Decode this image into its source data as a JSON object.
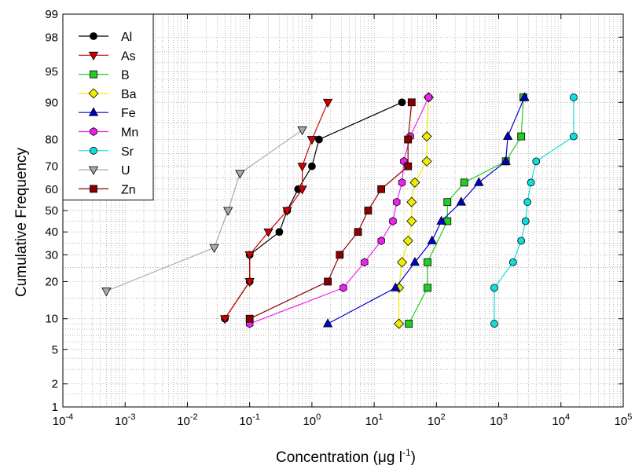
{
  "chart_data": {
    "type": "line",
    "xlabel": "Concentration (μg l",
    "xlabel_sup": "-1",
    "xlabel_end": ")",
    "ylabel": "Cumulative Frequency",
    "x_scale": "log",
    "y_scale": "probability",
    "xlim": [
      0.0001,
      100000
    ],
    "ylim": [
      1,
      99
    ],
    "x_ticks": [
      {
        "value": 0.0001,
        "base": "10",
        "exp": "-4"
      },
      {
        "value": 0.001,
        "base": "10",
        "exp": "-3"
      },
      {
        "value": 0.01,
        "base": "10",
        "exp": "-2"
      },
      {
        "value": 0.1,
        "base": "10",
        "exp": "-1"
      },
      {
        "value": 1,
        "base": "10",
        "exp": "0"
      },
      {
        "value": 10,
        "base": "10",
        "exp": "1"
      },
      {
        "value": 100,
        "base": "10",
        "exp": "2"
      },
      {
        "value": 1000,
        "base": "10",
        "exp": "3"
      },
      {
        "value": 10000,
        "base": "10",
        "exp": "4"
      },
      {
        "value": 100000,
        "base": "10",
        "exp": "5"
      }
    ],
    "y_ticks": [
      1,
      2,
      5,
      10,
      20,
      30,
      40,
      50,
      60,
      70,
      80,
      90,
      95,
      98,
      99
    ],
    "y_tick_labels": [
      "1",
      "2",
      "5",
      "10",
      "20",
      "30",
      "40",
      "50",
      "60",
      "70",
      "80",
      "90",
      "95",
      "98",
      "99"
    ],
    "grid": true,
    "legend_position": "top-left",
    "series": [
      {
        "name": "Al",
        "color": "#000000",
        "marker": "circle",
        "x": [
          0.04,
          0.1,
          0.1,
          0.3,
          0.4,
          0.6,
          1.0,
          1.3,
          28
        ],
        "y": [
          10,
          20,
          30,
          40,
          50,
          60,
          70,
          80,
          90
        ]
      },
      {
        "name": "As",
        "color": "#cc0000",
        "marker": "triangle-down",
        "x": [
          0.04,
          0.1,
          0.1,
          0.2,
          0.4,
          0.7,
          0.7,
          1.0,
          1.8
        ],
        "y": [
          10,
          20,
          30,
          40,
          50,
          60,
          70,
          80,
          90
        ]
      },
      {
        "name": "B",
        "color": "#22cc22",
        "marker": "square",
        "x": [
          36,
          72,
          72,
          150,
          150,
          280,
          1300,
          2300,
          2500
        ],
        "y": [
          9,
          18,
          27,
          45,
          54,
          63,
          72,
          81,
          91
        ]
      },
      {
        "name": "Ba",
        "color": "#eeee00",
        "marker": "diamond",
        "x": [
          25,
          25,
          28,
          35,
          40,
          40,
          45,
          70,
          70,
          75
        ],
        "y": [
          9,
          18,
          27,
          36,
          45,
          54,
          63,
          72,
          81,
          91
        ]
      },
      {
        "name": "Fe",
        "color": "#0000cc",
        "marker": "triangle-up",
        "x": [
          1.8,
          22,
          45,
          85,
          120,
          250,
          480,
          1300,
          1400,
          2600
        ],
        "y": [
          9,
          18,
          27,
          36,
          45,
          54,
          63,
          72,
          81,
          91
        ]
      },
      {
        "name": "Mn",
        "color": "#ee22ee",
        "marker": "hexagon",
        "x": [
          0.1,
          3.2,
          7,
          13,
          20,
          23,
          28,
          30,
          38,
          75
        ],
        "y": [
          9,
          18,
          27,
          36,
          45,
          54,
          63,
          72,
          81,
          91
        ]
      },
      {
        "name": "Sr",
        "color": "#11dddd",
        "marker": "circle",
        "x": [
          850,
          850,
          1700,
          2300,
          2700,
          2900,
          3300,
          4000,
          16000,
          16000
        ],
        "y": [
          9,
          18,
          27,
          36,
          45,
          54,
          63,
          72,
          81,
          91
        ]
      },
      {
        "name": "U",
        "color": "#aaaaaa",
        "marker": "triangle-down",
        "x": [
          0.0005,
          0.027,
          0.045,
          0.07,
          0.7
        ],
        "y": [
          17,
          33,
          50,
          67,
          83
        ]
      },
      {
        "name": "Zn",
        "color": "#880000",
        "marker": "square",
        "x": [
          0.1,
          1.8,
          2.8,
          5.5,
          8,
          13,
          35,
          35,
          40
        ],
        "y": [
          10,
          20,
          30,
          40,
          50,
          60,
          70,
          80,
          90
        ]
      }
    ]
  }
}
